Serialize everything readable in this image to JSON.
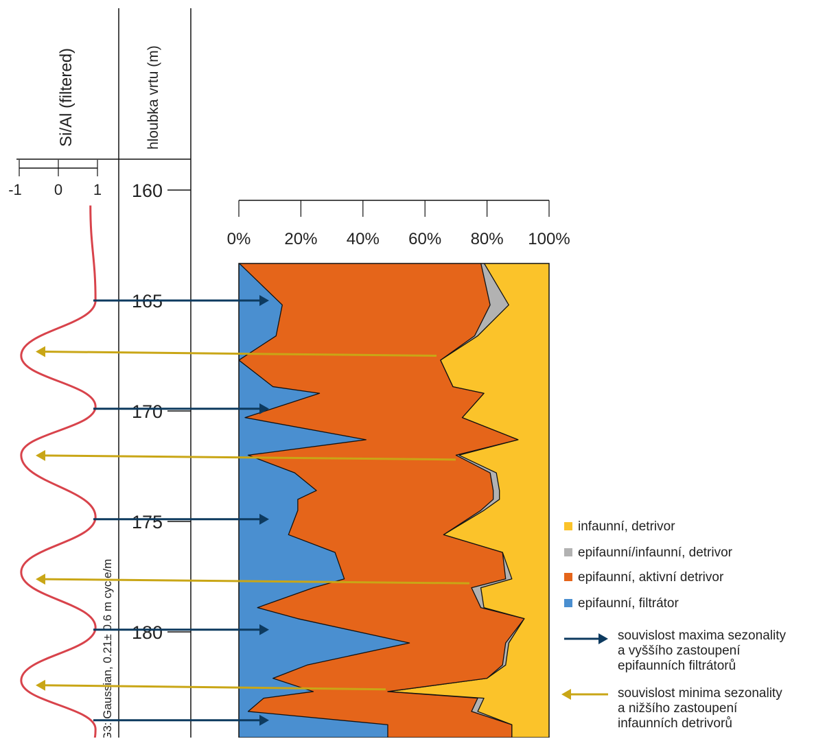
{
  "chart_data": {
    "type": "area",
    "stacked": true,
    "percent": true,
    "y_axis": {
      "label": "hloubka vrtu (m)",
      "range": [
        160,
        184
      ],
      "ticks": [
        160,
        165,
        170,
        175,
        180
      ],
      "inverted": true
    },
    "x_axis": {
      "ticks": [
        "0%",
        "20%",
        "40%",
        "60%",
        "80%",
        "100%"
      ],
      "range": [
        0,
        100
      ]
    },
    "depths": [
      163.3,
      165.2,
      166.6,
      167.7,
      168.9,
      169.2,
      170.3,
      171.3,
      172.0,
      172.8,
      173.6,
      174.0,
      174.5,
      175.6,
      176.4,
      177.6,
      178.0,
      178.9,
      179.4,
      180.5,
      181.5,
      182.1,
      182.7,
      183.0,
      183.6,
      184.2
    ],
    "cum_filtrator": [
      0,
      14,
      12,
      0,
      11,
      26,
      2,
      41,
      3,
      18,
      25,
      19,
      19,
      16,
      31,
      34,
      24,
      6,
      19,
      55,
      22,
      11,
      24,
      8,
      3,
      48
    ],
    "cum_aktivni": [
      78,
      81,
      76,
      65,
      69,
      79,
      72,
      90,
      70,
      81,
      82,
      82,
      78,
      66,
      85,
      86,
      75,
      78,
      92,
      86,
      85,
      80,
      48,
      77,
      75,
      88
    ],
    "cum_epi_infa": [
      79,
      87,
      77,
      65,
      69,
      79,
      72,
      90,
      71,
      83,
      84,
      84,
      79,
      66,
      85,
      88,
      78,
      79,
      92,
      87,
      86,
      80,
      48,
      79,
      77,
      88
    ],
    "series": [
      {
        "name": "infaunní, detrivor",
        "color": "#fbc32a"
      },
      {
        "name": "epifaunní/infaunní, detrivor",
        "color": "#b2b2b2"
      },
      {
        "name": "epifaunní, aktivní detrivor",
        "color": "#e5651a"
      },
      {
        "name": "epifaunní, filtrátor",
        "color": "#4a8fd0"
      }
    ],
    "siai": {
      "label": "Si/Al (filtered)",
      "ticks": [
        "-1",
        "0",
        "1"
      ],
      "range": [
        -1,
        1
      ],
      "rotated_label": "G3: Gaussian, 0.21± 0.6 m cycle/m",
      "curve_color": "#d8434b",
      "wave": {
        "maxima_depths": [
          160.8,
          165.0,
          169.8,
          174.8,
          179.8,
          184.4
        ],
        "minima_depths": [
          167.5,
          172.0,
          177.3,
          182.2
        ]
      }
    },
    "arrows": {
      "maximum": {
        "color": "#0d3a5f",
        "depths": [
          165.0,
          169.9,
          174.9,
          179.9,
          184.0
        ]
      },
      "minimum": {
        "color": "#c9a616",
        "depths": [
          167.5,
          172.2,
          177.8,
          182.6
        ]
      }
    },
    "legend_position": "bottom-right",
    "legend_arrows": [
      {
        "type": "maximum",
        "lines": [
          "souvislost maxima sezonality",
          "a vyššího zastoupení",
          "epifaunních filtrátorů"
        ]
      },
      {
        "type": "minimum",
        "lines": [
          "souvislost minima sezonality",
          "a nižšího zastoupení",
          "infaunních detrivorů"
        ]
      }
    ]
  }
}
